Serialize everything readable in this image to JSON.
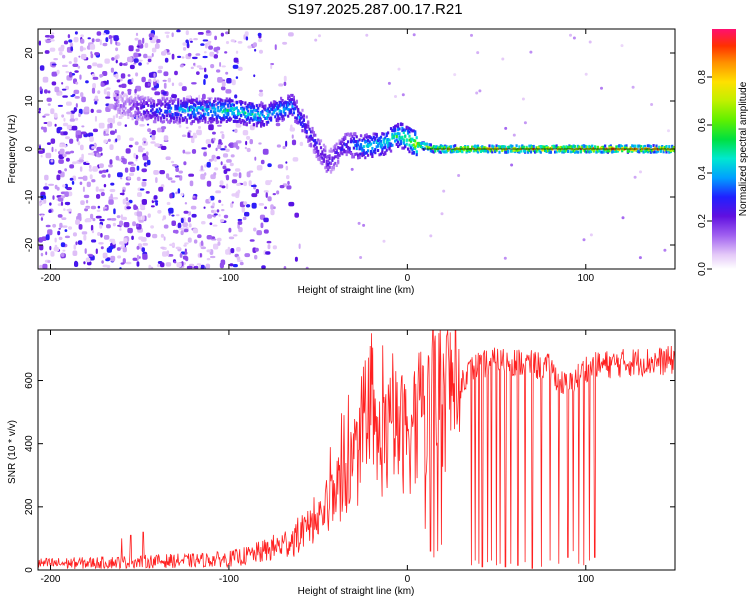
{
  "title": "S197.2025.287.00.17.R21",
  "chart_data": [
    {
      "type": "heatmap",
      "name": "spectrogram",
      "xlabel": "Height of straight line (km)",
      "ylabel": "Frequency (Hz)",
      "xlim": [
        -207,
        150
      ],
      "ylim": [
        -25,
        25
      ],
      "xticks": [
        -200,
        -100,
        0,
        100
      ],
      "xtick_labels": [
        "-200",
        "-100",
        "0",
        "100"
      ],
      "yticks": [
        -20,
        -10,
        0,
        10,
        20
      ],
      "ytick_labels": [
        "-20",
        "-10",
        "0",
        "10",
        "20"
      ],
      "colorbar": {
        "label": "Normalized spectral amplitude",
        "range": [
          0,
          1
        ],
        "ticks": [
          0.0,
          0.2,
          0.4,
          0.6,
          0.8
        ],
        "tick_labels": [
          "0.0",
          "0.2",
          "0.4",
          "0.6",
          "0.8"
        ]
      },
      "ridge": {
        "description_points_x": [
          -160,
          -140,
          -120,
          -100,
          -80,
          -65,
          -55,
          -45,
          -35,
          -25,
          -15,
          -5,
          0,
          5,
          15,
          40,
          80,
          120,
          150
        ],
        "description_points_freq": [
          9,
          8,
          8,
          8,
          7,
          9,
          3,
          -3,
          1,
          0.5,
          1,
          3,
          2,
          1,
          0,
          0,
          0,
          0,
          0
        ],
        "amplitude": [
          0.15,
          0.35,
          0.45,
          0.5,
          0.45,
          0.4,
          0.3,
          0.25,
          0.3,
          0.45,
          0.5,
          0.55,
          0.6,
          0.75,
          0.8,
          0.85,
          0.9,
          0.9,
          0.85
        ]
      }
    },
    {
      "type": "line",
      "name": "snr",
      "xlabel": "Height of straight line (km)",
      "ylabel": "SNR (10 * v/v)",
      "xlim": [
        -207,
        150
      ],
      "ylim": [
        0,
        760
      ],
      "xticks": [
        -200,
        -100,
        0,
        100
      ],
      "xtick_labels": [
        "-200",
        "-100",
        "0",
        "100"
      ],
      "yticks": [
        0,
        200,
        400,
        600
      ],
      "ytick_labels": [
        "0",
        "200",
        "400",
        "600"
      ],
      "series": [
        {
          "name": "SNR",
          "color": "#ff2020",
          "x": [
            -207,
            -180,
            -160,
            -140,
            -120,
            -100,
            -90,
            -80,
            -70,
            -60,
            -50,
            -45,
            -40,
            -35,
            -30,
            -25,
            -20,
            -15,
            -10,
            -5,
            0,
            5,
            10,
            20,
            30,
            35,
            40,
            50,
            60,
            70,
            80,
            85,
            90,
            100,
            110,
            120,
            130,
            140,
            150
          ],
          "y": [
            20,
            22,
            25,
            28,
            30,
            35,
            45,
            60,
            80,
            110,
            160,
            200,
            250,
            300,
            330,
            380,
            420,
            400,
            430,
            450,
            420,
            460,
            500,
            560,
            600,
            630,
            650,
            660,
            660,
            650,
            640,
            600,
            580,
            640,
            650,
            655,
            660,
            660,
            665
          ],
          "spikes_x": [
            -160,
            -155,
            -148,
            -20
          ],
          "spikes_y": [
            100,
            110,
            120,
            750
          ],
          "dropout_x": [
            10,
            13,
            15,
            17,
            19,
            36,
            38,
            40,
            42,
            45,
            47,
            50,
            52,
            55,
            58,
            62,
            66,
            70,
            75,
            80,
            85,
            90,
            93,
            96,
            99,
            102,
            105
          ],
          "dropout_y": [
            130,
            60,
            40,
            60,
            80,
            15,
            30,
            20,
            10,
            25,
            30,
            15,
            20,
            10,
            20,
            15,
            25,
            5,
            10,
            30,
            20,
            40,
            60,
            20,
            15,
            30,
            40
          ]
        }
      ]
    }
  ]
}
